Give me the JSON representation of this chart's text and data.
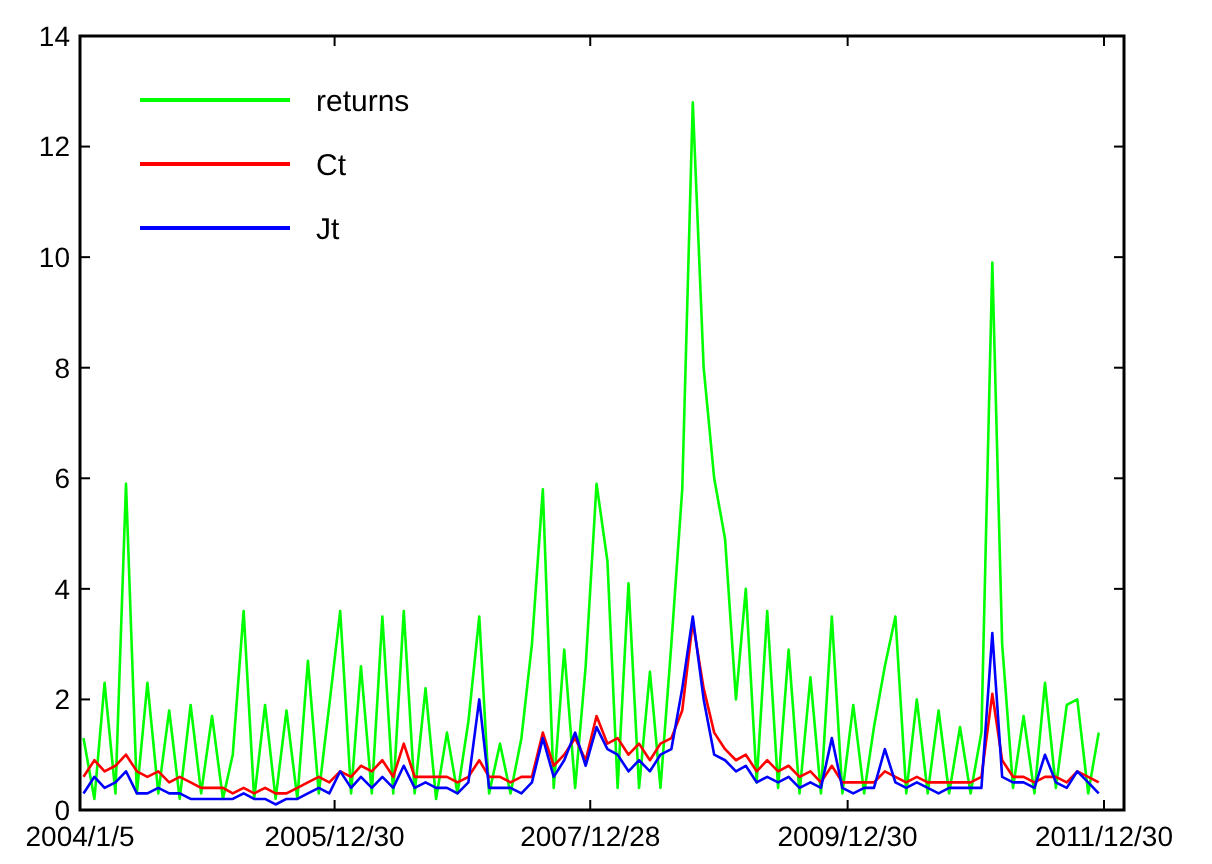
{
  "chart_data": {
    "type": "line",
    "x": [
      "2004-01-15",
      "2004-02-15",
      "2004-03-15",
      "2004-04-15",
      "2004-05-15",
      "2004-06-15",
      "2004-07-15",
      "2004-08-15",
      "2004-09-15",
      "2004-10-15",
      "2004-11-15",
      "2004-12-15",
      "2005-01-15",
      "2005-02-15",
      "2005-03-15",
      "2005-04-15",
      "2005-05-15",
      "2005-06-15",
      "2005-07-15",
      "2005-08-15",
      "2005-09-15",
      "2005-10-15",
      "2005-11-15",
      "2005-12-15",
      "2006-01-15",
      "2006-02-15",
      "2006-03-15",
      "2006-04-15",
      "2006-05-15",
      "2006-06-15",
      "2006-07-15",
      "2006-08-15",
      "2006-09-15",
      "2006-10-15",
      "2006-11-15",
      "2006-12-15",
      "2007-01-15",
      "2007-02-15",
      "2007-03-15",
      "2007-04-15",
      "2007-05-15",
      "2007-06-15",
      "2007-07-15",
      "2007-08-15",
      "2007-09-15",
      "2007-10-15",
      "2007-11-15",
      "2007-12-15",
      "2008-01-15",
      "2008-02-15",
      "2008-03-15",
      "2008-04-15",
      "2008-05-15",
      "2008-06-15",
      "2008-07-15",
      "2008-08-15",
      "2008-09-15",
      "2008-10-15",
      "2008-11-15",
      "2008-12-15",
      "2009-01-15",
      "2009-02-15",
      "2009-03-15",
      "2009-04-15",
      "2009-05-15",
      "2009-06-15",
      "2009-07-15",
      "2009-08-15",
      "2009-09-15",
      "2009-10-15",
      "2009-11-15",
      "2009-12-15",
      "2010-01-15",
      "2010-02-15",
      "2010-03-15",
      "2010-04-15",
      "2010-05-15",
      "2010-06-15",
      "2010-07-15",
      "2010-08-15",
      "2010-09-15",
      "2010-10-15",
      "2010-11-15",
      "2010-12-15",
      "2011-01-15",
      "2011-02-15",
      "2011-03-15",
      "2011-04-15",
      "2011-05-15",
      "2011-06-15",
      "2011-07-15",
      "2011-08-15",
      "2011-09-15",
      "2011-10-15",
      "2011-11-15",
      "2011-12-15"
    ],
    "series": [
      {
        "name": "returns",
        "color": "#00ff00",
        "values": [
          1.3,
          0.2,
          2.3,
          0.3,
          5.9,
          0.3,
          2.3,
          0.3,
          1.8,
          0.2,
          1.9,
          0.3,
          1.7,
          0.2,
          1.0,
          3.6,
          0.2,
          1.9,
          0.2,
          1.8,
          0.2,
          2.7,
          0.3,
          1.9,
          3.6,
          0.3,
          2.6,
          0.3,
          3.5,
          0.3,
          3.6,
          0.3,
          2.2,
          0.2,
          1.4,
          0.3,
          1.6,
          3.5,
          0.3,
          1.2,
          0.3,
          1.3,
          3.0,
          5.8,
          0.4,
          2.9,
          0.4,
          2.6,
          5.9,
          4.5,
          0.4,
          4.1,
          0.4,
          2.5,
          0.4,
          3.0,
          5.8,
          12.8,
          8.0,
          6.0,
          4.9,
          2.0,
          4.0,
          0.5,
          3.6,
          0.4,
          2.9,
          0.3,
          2.4,
          0.3,
          3.5,
          0.3,
          1.9,
          0.3,
          1.5,
          2.6,
          3.5,
          0.3,
          2.0,
          0.3,
          1.8,
          0.3,
          1.5,
          0.3,
          1.4,
          9.9,
          3.0,
          0.4,
          1.7,
          0.3,
          2.3,
          0.4,
          1.9,
          2.0,
          0.3,
          1.4
        ]
      },
      {
        "name": "Ct",
        "color": "#ff0000",
        "values": [
          0.6,
          0.9,
          0.7,
          0.8,
          1.0,
          0.7,
          0.6,
          0.7,
          0.5,
          0.6,
          0.5,
          0.4,
          0.4,
          0.4,
          0.3,
          0.4,
          0.3,
          0.4,
          0.3,
          0.3,
          0.4,
          0.5,
          0.6,
          0.5,
          0.7,
          0.6,
          0.8,
          0.7,
          0.9,
          0.6,
          1.2,
          0.6,
          0.6,
          0.6,
          0.6,
          0.5,
          0.6,
          0.9,
          0.6,
          0.6,
          0.5,
          0.6,
          0.6,
          1.4,
          0.8,
          1.0,
          1.3,
          0.9,
          1.7,
          1.2,
          1.3,
          1.0,
          1.2,
          0.9,
          1.2,
          1.3,
          1.8,
          3.4,
          2.2,
          1.4,
          1.1,
          0.9,
          1.0,
          0.7,
          0.9,
          0.7,
          0.8,
          0.6,
          0.7,
          0.5,
          0.8,
          0.5,
          0.5,
          0.5,
          0.5,
          0.7,
          0.6,
          0.5,
          0.6,
          0.5,
          0.5,
          0.5,
          0.5,
          0.5,
          0.6,
          2.1,
          0.9,
          0.6,
          0.6,
          0.5,
          0.6,
          0.6,
          0.5,
          0.7,
          0.6,
          0.5
        ]
      },
      {
        "name": "Jt",
        "color": "#0000ff",
        "values": [
          0.3,
          0.6,
          0.4,
          0.5,
          0.7,
          0.3,
          0.3,
          0.4,
          0.3,
          0.3,
          0.2,
          0.2,
          0.2,
          0.2,
          0.2,
          0.3,
          0.2,
          0.2,
          0.1,
          0.2,
          0.2,
          0.3,
          0.4,
          0.3,
          0.7,
          0.4,
          0.6,
          0.4,
          0.6,
          0.4,
          0.8,
          0.4,
          0.5,
          0.4,
          0.4,
          0.3,
          0.5,
          2.0,
          0.4,
          0.4,
          0.4,
          0.3,
          0.5,
          1.3,
          0.6,
          0.9,
          1.4,
          0.8,
          1.5,
          1.1,
          1.0,
          0.7,
          0.9,
          0.7,
          1.0,
          1.1,
          2.2,
          3.5,
          2.0,
          1.0,
          0.9,
          0.7,
          0.8,
          0.5,
          0.6,
          0.5,
          0.6,
          0.4,
          0.5,
          0.4,
          1.3,
          0.4,
          0.3,
          0.4,
          0.4,
          1.1,
          0.5,
          0.4,
          0.5,
          0.4,
          0.3,
          0.4,
          0.4,
          0.4,
          0.4,
          3.2,
          0.6,
          0.5,
          0.5,
          0.4,
          1.0,
          0.5,
          0.4,
          0.7,
          0.5,
          0.3
        ]
      }
    ],
    "xlim": [
      "2004-01-05",
      "2012-02-25"
    ],
    "xticks": [
      {
        "value": "2004-01-05",
        "label": "2004/1/5"
      },
      {
        "value": "2005-12-30",
        "label": "2005/12/30"
      },
      {
        "value": "2007-12-28",
        "label": "2007/12/28"
      },
      {
        "value": "2009-12-30",
        "label": "2009/12/30"
      },
      {
        "value": "2011-12-30",
        "label": "2011/12/30"
      }
    ],
    "ylim": [
      0,
      14
    ],
    "yticks": [
      0,
      2,
      4,
      6,
      8,
      10,
      12,
      14
    ],
    "grid": false,
    "legend": "top left",
    "marker": "none",
    "line_style": "solid"
  }
}
